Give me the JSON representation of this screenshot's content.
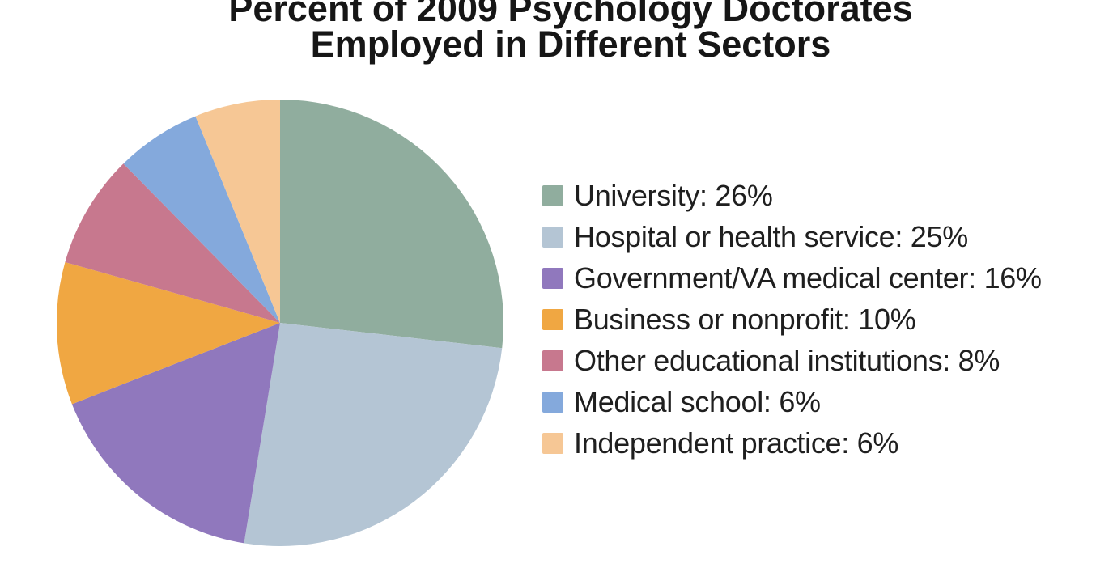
{
  "page": {
    "background_color": "#ffffff"
  },
  "chart_data": {
    "type": "pie",
    "title": "Percent of 2009 Psychology Doctorates Employed in Different Sectors",
    "title_lines": [
      "Percent of 2009 Psychology Doctorates",
      "Employed in Different Sectors"
    ],
    "unit": "%",
    "categories": [
      "University",
      "Hospital or health service",
      "Government/VA medical center",
      "Business or nonprofit",
      "Other educational institutions",
      "Medical school",
      "Independent practice"
    ],
    "values": [
      26,
      25,
      16,
      10,
      8,
      6,
      6
    ],
    "colors": [
      "#90AD9E",
      "#B4C5D4",
      "#9078BD",
      "#F0A742",
      "#C7788E",
      "#84A9DC",
      "#F6C795"
    ],
    "legend_labels": [
      "University: 26%",
      "Hospital or health service: 25%",
      "Government/VA medical center: 16%",
      "Business or nonprofit: 10%",
      "Other educational institutions: 8%",
      "Medical school: 6%",
      "Independent practice: 6%"
    ],
    "legend_position": "right",
    "start_angle": "top",
    "direction": "clockwise"
  }
}
